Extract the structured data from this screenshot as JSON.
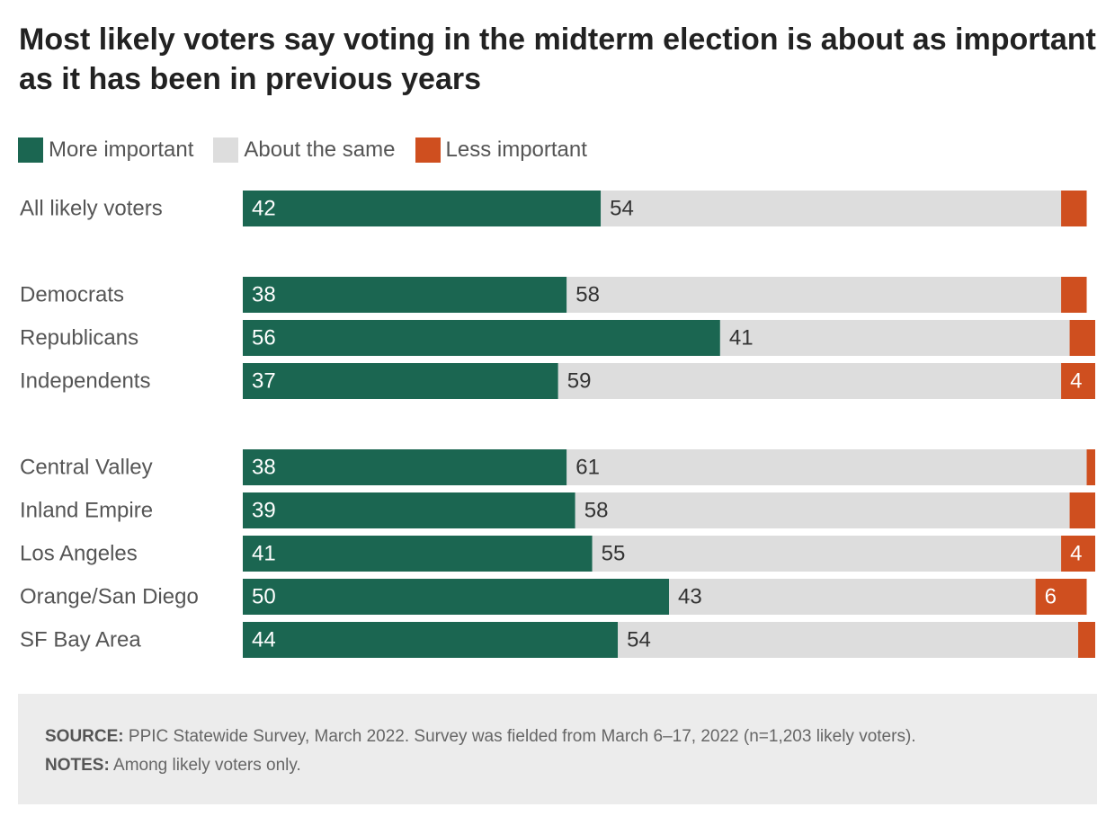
{
  "chart_data": {
    "type": "bar",
    "orientation": "horizontal",
    "stacked": true,
    "title": "Most likely voters say voting in the midterm election is about as important as it has been in previous years",
    "legend_position": "top-left",
    "xlim": [
      0,
      100
    ],
    "categories": [
      "All likely voters",
      "Democrats",
      "Republicans",
      "Independents",
      "Central Valley",
      "Inland Empire",
      "Los Angeles",
      "Orange/San Diego",
      "SF Bay Area"
    ],
    "groups": [
      [
        0
      ],
      [
        1,
        2,
        3
      ],
      [
        4,
        5,
        6,
        7,
        8
      ]
    ],
    "series": [
      {
        "name": "More important",
        "color": "#1b6651",
        "label_color": "#ffffff",
        "values": [
          42,
          38,
          56,
          37,
          38,
          39,
          41,
          50,
          44
        ],
        "labels": [
          "42",
          "38",
          "56",
          "37",
          "38",
          "39",
          "41",
          "50",
          "44"
        ]
      },
      {
        "name": "About the same",
        "color": "#dddddd",
        "label_color": "#333333",
        "values": [
          54,
          58,
          41,
          59,
          61,
          58,
          55,
          43,
          54
        ],
        "labels": [
          "54",
          "58",
          "41",
          "59",
          "61",
          "58",
          "55",
          "43",
          "54"
        ]
      },
      {
        "name": "Less important",
        "color": "#cf4f1f",
        "label_color": "#ffffff",
        "values": [
          3,
          3,
          3,
          4,
          1,
          3,
          4,
          6,
          2
        ],
        "labels": [
          "",
          "",
          "",
          "4",
          "",
          "",
          "4",
          "6",
          ""
        ]
      }
    ]
  },
  "footer": {
    "source_label": "SOURCE:",
    "source_text": "PPIC Statewide Survey, March 2022. Survey was fielded from March 6–17, 2022 (n=1,203 likely voters).",
    "notes_label": "NOTES:",
    "notes_text": "Among likely voters only."
  }
}
